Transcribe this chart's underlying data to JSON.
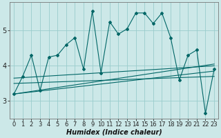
{
  "xlabel": "Humidex (Indice chaleur)",
  "x_values": [
    0,
    1,
    2,
    3,
    4,
    5,
    6,
    7,
    8,
    9,
    10,
    11,
    12,
    13,
    14,
    15,
    16,
    17,
    18,
    19,
    20,
    21,
    22,
    23
  ],
  "line1": [
    3.2,
    3.7,
    4.3,
    3.3,
    4.25,
    4.3,
    4.6,
    4.8,
    3.9,
    5.55,
    3.8,
    5.25,
    4.9,
    5.05,
    5.5,
    5.5,
    5.2,
    5.5,
    4.8,
    3.6,
    4.3,
    4.45,
    2.65,
    3.9
  ],
  "trend_lines": [
    [
      3.2,
      3.85
    ],
    [
      3.65,
      4.0
    ],
    [
      3.5,
      3.7
    ],
    [
      3.2,
      4.05
    ]
  ],
  "bg_color": "#cce8e8",
  "plot_bg_color": "#cce8e8",
  "grid_color": "#99cccc",
  "line_color": "#006666",
  "ylim": [
    2.5,
    5.8
  ],
  "xlim": [
    -0.5,
    23.5
  ],
  "yticks": [
    3,
    4,
    5
  ],
  "xticks": [
    0,
    1,
    2,
    3,
    4,
    5,
    6,
    7,
    8,
    9,
    10,
    11,
    12,
    13,
    14,
    15,
    16,
    17,
    18,
    19,
    20,
    21,
    22,
    23
  ],
  "tick_fontsize": 6,
  "xlabel_fontsize": 7,
  "linewidth": 0.8,
  "markersize": 2.0
}
